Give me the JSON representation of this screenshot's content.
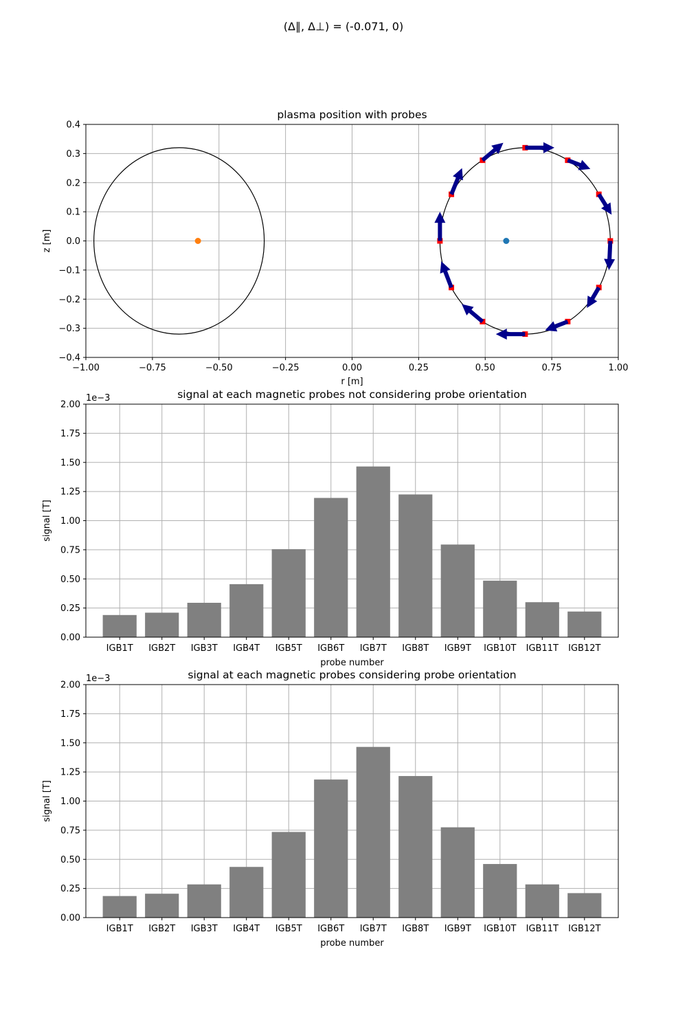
{
  "figure_title": "(Δ∥, Δ⊥) = (-0.071, 0)",
  "chart_data": [
    {
      "type": "scatter",
      "title": "plasma position with probes",
      "xlabel": "r [m]",
      "ylabel": "z [m]",
      "xlim": [
        -1.0,
        1.0
      ],
      "ylim": [
        -0.4,
        0.4
      ],
      "xticks": [
        -1.0,
        -0.75,
        -0.5,
        -0.25,
        0.0,
        0.25,
        0.5,
        0.75,
        1.0
      ],
      "xtick_labels": [
        "−1.00",
        "−0.75",
        "−0.50",
        "−0.25",
        "0.00",
        "0.25",
        "0.50",
        "0.75",
        "1.00"
      ],
      "yticks": [
        -0.4,
        -0.3,
        -0.2,
        -0.1,
        0.0,
        0.1,
        0.2,
        0.3,
        0.4
      ],
      "ytick_labels": [
        "−0.4",
        "−0.3",
        "−0.2",
        "−0.1",
        "0.0",
        "0.1",
        "0.2",
        "0.3",
        "0.4"
      ],
      "grid": true,
      "circles": [
        {
          "center": [
            -0.65,
            0.0
          ],
          "radius": 0.32,
          "color": "#000000"
        },
        {
          "center": [
            0.65,
            0.0
          ],
          "radius": 0.32,
          "color": "#000000"
        }
      ],
      "plasma_points": [
        {
          "r": -0.579,
          "z": 0.0,
          "color": "#ff7f0e"
        },
        {
          "r": 0.579,
          "z": 0.0,
          "color": "#1f77b4"
        }
      ],
      "probes": {
        "color": "#ff0000",
        "r": [
          0.97,
          0.927,
          0.81,
          0.65,
          0.49,
          0.373,
          0.33,
          0.373,
          0.49,
          0.65,
          0.81,
          0.927
        ],
        "z": [
          0.0,
          -0.16,
          -0.277,
          -0.32,
          -0.277,
          -0.16,
          0.0,
          0.16,
          0.277,
          0.32,
          0.277,
          0.16
        ]
      },
      "arrows": {
        "color": "#00008b",
        "u": [
          -0.005,
          -0.045,
          -0.085,
          -0.11,
          -0.078,
          -0.038,
          0.0,
          0.04,
          0.078,
          0.11,
          0.085,
          0.048
        ],
        "v": [
          -0.1,
          -0.07,
          -0.03,
          0.0,
          0.06,
          0.09,
          0.1,
          0.09,
          0.06,
          0.0,
          -0.03,
          -0.07
        ]
      }
    },
    {
      "type": "bar",
      "title": "signal at each magnetic probes not considering probe orientation",
      "xlabel": "probe number",
      "ylabel": "signal [T]",
      "offset_text": "1e−3",
      "categories": [
        "IGB1T",
        "IGB2T",
        "IGB3T",
        "IGB4T",
        "IGB5T",
        "IGB6T",
        "IGB7T",
        "IGB8T",
        "IGB9T",
        "IGB10T",
        "IGB11T",
        "IGB12T"
      ],
      "values": [
        0.19,
        0.21,
        0.295,
        0.455,
        0.755,
        1.195,
        1.465,
        1.225,
        0.795,
        0.485,
        0.3,
        0.22
      ],
      "ylim": [
        0.0,
        2.0
      ],
      "yticks": [
        0.0,
        0.25,
        0.5,
        0.75,
        1.0,
        1.25,
        1.5,
        1.75,
        2.0
      ],
      "ytick_labels": [
        "0.00",
        "0.25",
        "0.50",
        "0.75",
        "1.00",
        "1.25",
        "1.50",
        "1.75",
        "2.00"
      ],
      "grid": true,
      "bar_color": "#808080"
    },
    {
      "type": "bar",
      "title": "signal at each magnetic probes considering probe orientation",
      "xlabel": "probe number",
      "ylabel": "signal [T]",
      "offset_text": "1e−3",
      "categories": [
        "IGB1T",
        "IGB2T",
        "IGB3T",
        "IGB4T",
        "IGB5T",
        "IGB6T",
        "IGB7T",
        "IGB8T",
        "IGB9T",
        "IGB10T",
        "IGB11T",
        "IGB12T"
      ],
      "values": [
        0.185,
        0.205,
        0.285,
        0.435,
        0.735,
        1.185,
        1.465,
        1.215,
        0.775,
        0.46,
        0.285,
        0.21
      ],
      "ylim": [
        0.0,
        2.0
      ],
      "yticks": [
        0.0,
        0.25,
        0.5,
        0.75,
        1.0,
        1.25,
        1.5,
        1.75,
        2.0
      ],
      "ytick_labels": [
        "0.00",
        "0.25",
        "0.50",
        "0.75",
        "1.00",
        "1.25",
        "1.50",
        "1.75",
        "2.00"
      ],
      "grid": true,
      "bar_color": "#808080"
    }
  ]
}
